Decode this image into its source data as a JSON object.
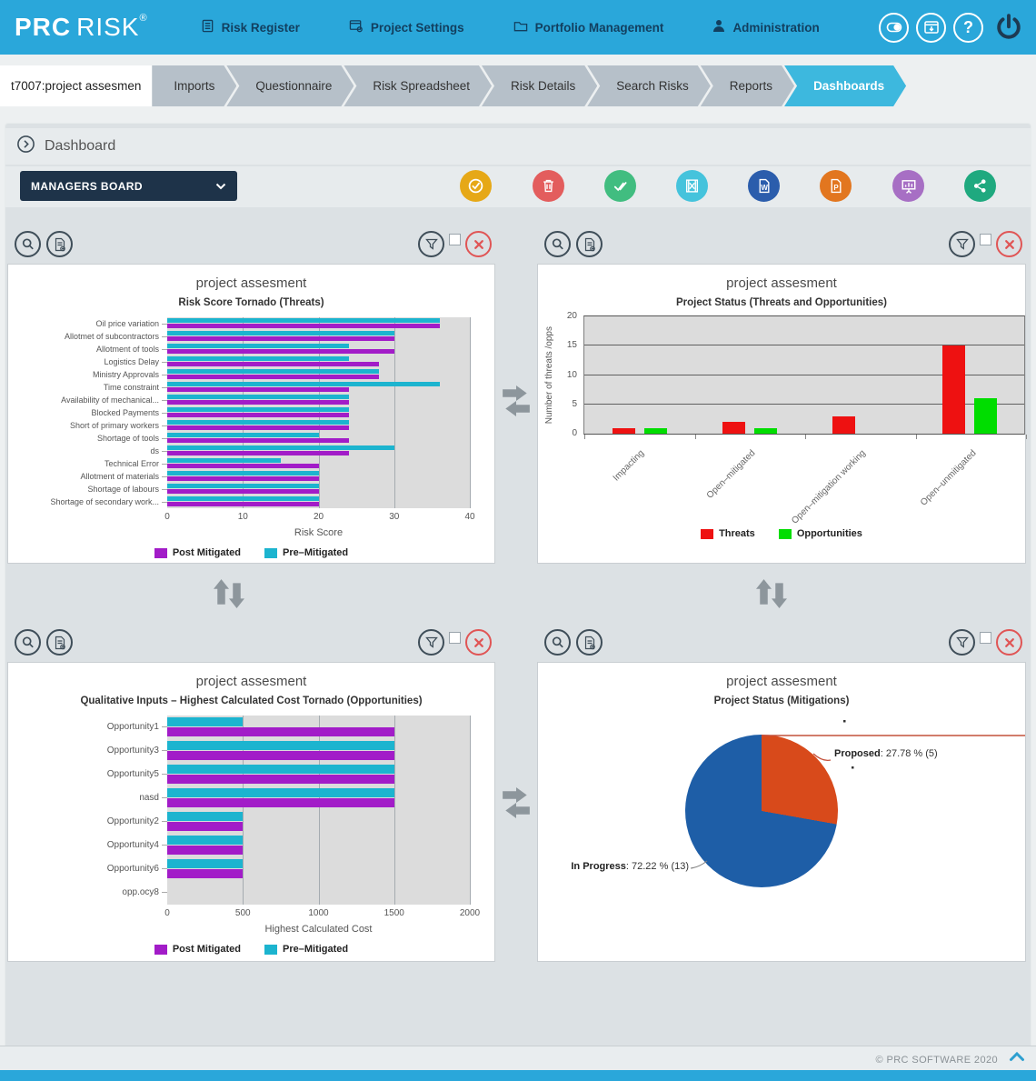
{
  "header": {
    "logo": {
      "prc": "PRC",
      "risk": "RISK",
      "reg": "®"
    },
    "nav": [
      {
        "label": "Risk Register"
      },
      {
        "label": "Project Settings"
      },
      {
        "label": "Portfolio Management"
      },
      {
        "label": "Administration"
      }
    ]
  },
  "tabs": {
    "project": "t7007:project assesmen",
    "items": [
      "Imports",
      "Questionnaire",
      "Risk Spreadsheet",
      "Risk Details",
      "Search Risks",
      "Reports",
      "Dashboards"
    ],
    "active": "Dashboards"
  },
  "dashboard": {
    "title": "Dashboard",
    "board": "MANAGERS BOARD"
  },
  "toolbar": {
    "icons": [
      {
        "name": "confirm",
        "color": "#e6a817"
      },
      {
        "name": "delete",
        "color": "#e35d5d"
      },
      {
        "name": "approve-all",
        "color": "#41bd80"
      },
      {
        "name": "export-excel",
        "color": "#45c3dc"
      },
      {
        "name": "export-word",
        "color": "#2b5dac"
      },
      {
        "name": "export-pdf",
        "color": "#e2761f"
      },
      {
        "name": "export-presentation",
        "color": "#a76fc4"
      },
      {
        "name": "share",
        "color": "#1fa97f"
      }
    ]
  },
  "footer": {
    "copyright": "© PRC SOFTWARE 2020"
  },
  "chart_data": [
    {
      "type": "bar",
      "orientation": "horizontal",
      "title": "project assesment",
      "subtitle": "Risk Score Tornado (Threats)",
      "categories": [
        "Oil price variation",
        "Allotmet of subcontractors",
        "Allotment of tools",
        "Logistics Delay",
        "Ministry Approvals",
        "Time constraint",
        "Availability of mechanical...",
        "Blocked Payments",
        "Short of primary workers",
        "Shortage of tools",
        "ds",
        "Technical Error",
        "Allotment of materials",
        "Shortage of labours",
        "Shortage of secondary work..."
      ],
      "series": [
        {
          "name": "Pre–Mitigated",
          "color": "#1cb4cf",
          "values": [
            36,
            30,
            24,
            24,
            28,
            36,
            24,
            24,
            24,
            20,
            30,
            15,
            20,
            20,
            20
          ]
        },
        {
          "name": "Post Mitigated",
          "color": "#a21cc8",
          "values": [
            36,
            30,
            30,
            28,
            28,
            24,
            24,
            24,
            24,
            24,
            24,
            20,
            20,
            20,
            20
          ]
        }
      ],
      "legend": [
        "Post Mitigated",
        "Pre–Mitigated"
      ],
      "xlabel": "Risk Score",
      "xlim": [
        0,
        40
      ],
      "xticks": [
        0,
        10,
        20,
        30,
        40
      ]
    },
    {
      "type": "bar",
      "orientation": "vertical",
      "title": "project assesment",
      "subtitle": "Project Status (Threats and Opportunities)",
      "categories": [
        "Impacting",
        "Open–mitigated",
        "Open–mitigation working",
        "Open–unmitigated"
      ],
      "series": [
        {
          "name": "Threats",
          "color": "#ee1111",
          "values": [
            1,
            2,
            3,
            15
          ]
        },
        {
          "name": "Opportunities",
          "color": "#00dd00",
          "values": [
            1,
            1,
            0,
            6
          ]
        }
      ],
      "legend": [
        "Threats",
        "Opportunities"
      ],
      "ylabel": "Number of threats /opps",
      "ylim": [
        0,
        20
      ],
      "yticks": [
        0,
        5,
        10,
        15,
        20
      ]
    },
    {
      "type": "bar",
      "orientation": "horizontal",
      "title": "project assesment",
      "subtitle": "Qualitative Inputs – Highest Calculated Cost Tornado (Opportunities)",
      "categories": [
        "Opportunity1",
        "Opportunity3",
        "Opportunity5",
        "nasd",
        "Opportunity2",
        "Opportunity4",
        "Opportunity6",
        "opp.ocy8"
      ],
      "series": [
        {
          "name": "Pre–Mitigated",
          "color": "#1cb4cf",
          "values": [
            500,
            1500,
            1500,
            1500,
            500,
            500,
            500,
            0
          ]
        },
        {
          "name": "Post Mitigated",
          "color": "#a21cc8",
          "values": [
            1500,
            1500,
            1500,
            1500,
            500,
            500,
            500,
            0
          ]
        }
      ],
      "legend": [
        "Post Mitigated",
        "Pre–Mitigated"
      ],
      "xlabel": "Highest Calculated Cost",
      "xlim": [
        0,
        2000
      ],
      "xticks": [
        0,
        500,
        1000,
        1500,
        2000
      ]
    },
    {
      "type": "pie",
      "title": "project assesment",
      "subtitle": "Project Status (Mitigations)",
      "slices": [
        {
          "label": "Proposed",
          "pct": 27.78,
          "count": 5,
          "color": "#d84a1b",
          "value_text": ": 27.78 % (5)"
        },
        {
          "label": "In Progress",
          "pct": 72.22,
          "count": 13,
          "color": "#1e5ea7",
          "value_text": ": 72.22 % (13)"
        }
      ]
    }
  ]
}
